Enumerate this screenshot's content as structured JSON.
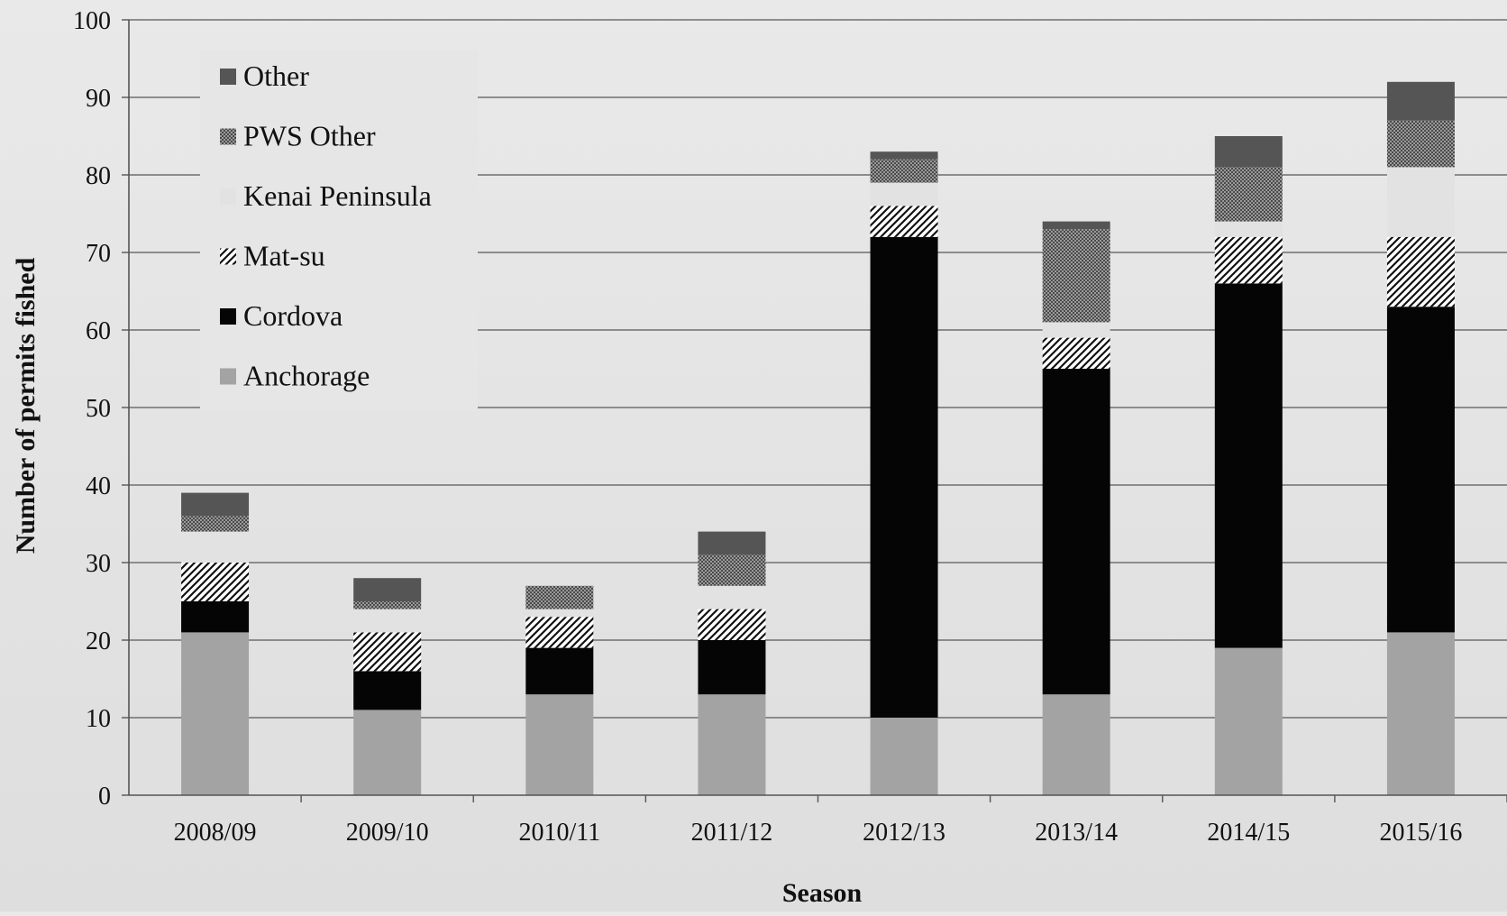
{
  "chart_data": {
    "type": "bar",
    "stacked": true,
    "title": "",
    "xlabel": "Season",
    "ylabel": "Number of permits fished",
    "ylim": [
      0,
      100
    ],
    "yticks": [
      0,
      10,
      20,
      30,
      40,
      50,
      60,
      70,
      80,
      90,
      100
    ],
    "grid": true,
    "legend_position": "top-left",
    "categories": [
      "2008/09",
      "2009/10",
      "2010/11",
      "2011/12",
      "2012/13",
      "2013/14",
      "2014/15",
      "2015/16"
    ],
    "series": [
      {
        "name": "Anchorage",
        "color": "#a3a3a3",
        "pattern": "solid",
        "values": [
          21,
          11,
          13,
          13,
          10,
          13,
          19,
          21
        ]
      },
      {
        "name": "Cordova",
        "color": "#050505",
        "pattern": "solid",
        "values": [
          4,
          5,
          6,
          7,
          62,
          42,
          47,
          42
        ]
      },
      {
        "name": "Mat-su",
        "color": "#ffffff",
        "pattern": "diagonal-hatch",
        "values": [
          5,
          5,
          4,
          4,
          4,
          4,
          6,
          9
        ]
      },
      {
        "name": "Kenai Peninsula",
        "color": "#e2e2e2",
        "pattern": "solid",
        "values": [
          4,
          3,
          1,
          3,
          3,
          2,
          2,
          9
        ]
      },
      {
        "name": "PWS Other",
        "color": "#8a8a8a",
        "pattern": "checker",
        "values": [
          2,
          1,
          3,
          4,
          3,
          12,
          7,
          6
        ]
      },
      {
        "name": "Other",
        "color": "#555555",
        "pattern": "solid",
        "values": [
          3,
          3,
          0,
          3,
          1,
          1,
          4,
          5
        ]
      }
    ]
  }
}
